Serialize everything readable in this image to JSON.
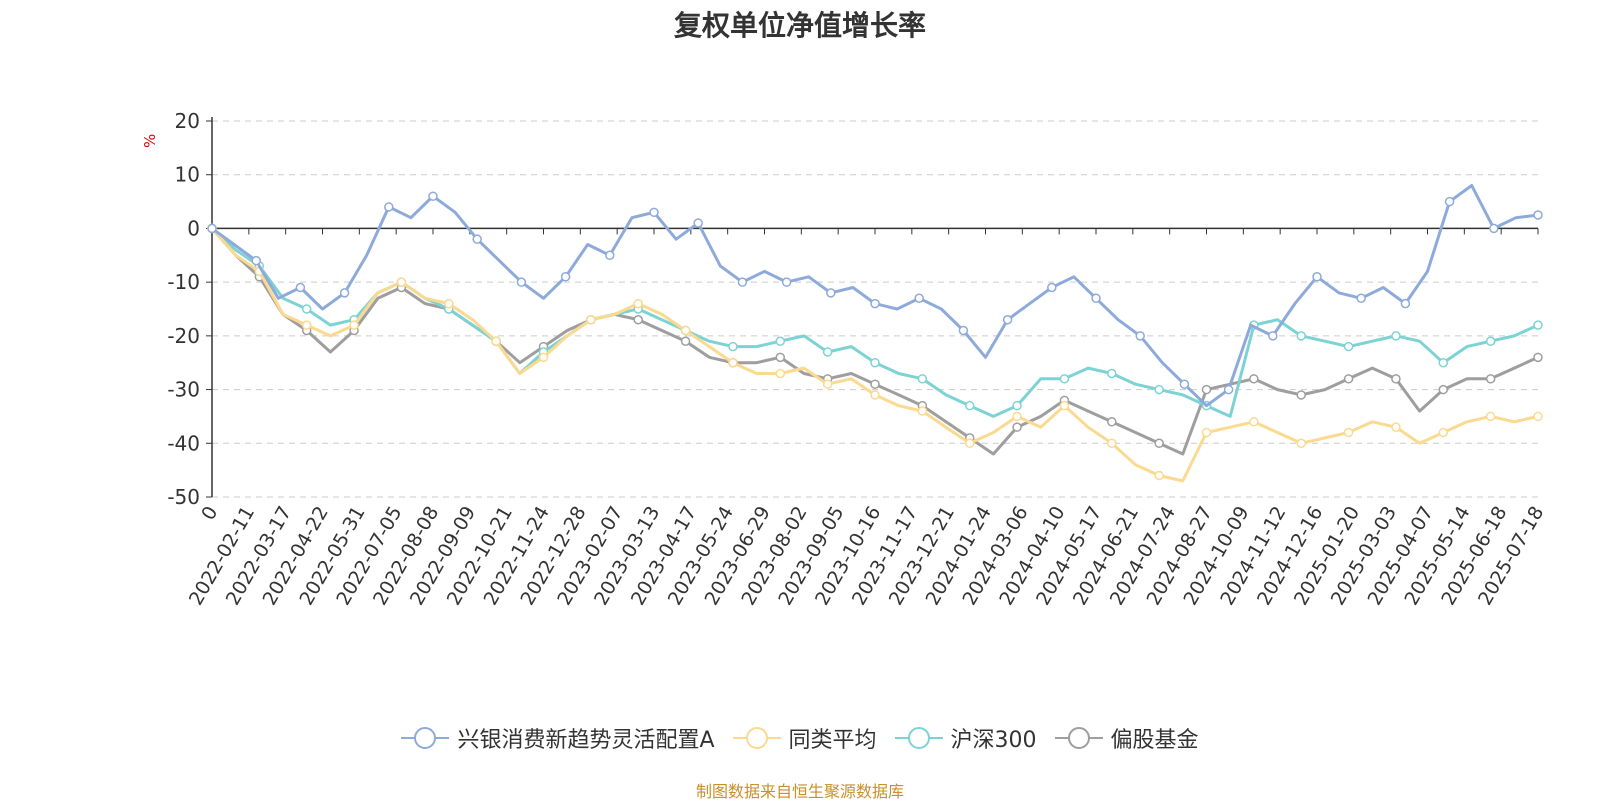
{
  "chart_data": {
    "type": "line",
    "title": "复权单位净值增长率",
    "ylabel": "%",
    "ylim": [
      -50,
      20
    ],
    "yticks": [
      "20",
      "10",
      "0",
      "-10",
      "-20",
      "-30",
      "-40",
      "-50"
    ],
    "yticks_values": [
      20,
      10,
      0,
      -10,
      -20,
      -30,
      -40,
      -50
    ],
    "x_ticks": [
      "0",
      "2022-02-11",
      "2022-03-17",
      "2022-04-22",
      "2022-05-31",
      "2022-07-05",
      "2022-08-08",
      "2022-09-09",
      "2022-10-21",
      "2022-11-24",
      "2022-12-28",
      "2023-02-07",
      "2023-03-13",
      "2023-04-17",
      "2023-05-24",
      "2023-06-29",
      "2023-08-02",
      "2023-09-05",
      "2023-10-16",
      "2023-11-17",
      "2023-12-21",
      "2024-01-24",
      "2024-03-06",
      "2024-04-10",
      "2024-05-17",
      "2024-06-21",
      "2024-07-24",
      "2024-08-27",
      "2024-10-09",
      "2024-11-12",
      "2024-12-16",
      "2025-01-20",
      "2025-03-03",
      "2025-04-07",
      "2025-05-14",
      "2025-06-18",
      "2025-07-18"
    ],
    "grid": true,
    "legend_position": "bottom",
    "series": [
      {
        "name": "兴银消费新趋势灵活配置A",
        "color": "#8eaadb",
        "values": [
          0,
          -3,
          -6,
          -13,
          -11,
          -15,
          -12,
          -5,
          4,
          2,
          6,
          3,
          -2,
          -6,
          -10,
          -13,
          -9,
          -3,
          -5,
          2,
          3,
          -2,
          1,
          -7,
          -10,
          -8,
          -10,
          -9,
          -12,
          -11,
          -14,
          -15,
          -13,
          -15,
          -19,
          -24,
          -17,
          -14,
          -11,
          -9,
          -13,
          -17,
          -20,
          -25,
          -29,
          -33,
          -30,
          -18,
          -20,
          -14,
          -9,
          -12,
          -13,
          -11,
          -14,
          -8,
          5,
          8,
          0,
          2,
          2.5
        ]
      },
      {
        "name": "同类平均",
        "color": "#fbd98f",
        "values": [
          0,
          -5,
          -8,
          -16,
          -18,
          -20,
          -18,
          -12,
          -10,
          -13,
          -14,
          -17,
          -21,
          -27,
          -24,
          -20,
          -17,
          -16,
          -14,
          -16,
          -19,
          -22,
          -25,
          -27,
          -27,
          -26,
          -29,
          -28,
          -31,
          -33,
          -34,
          -37,
          -40,
          -38,
          -35,
          -37,
          -33,
          -37,
          -40,
          -44,
          -46,
          -47,
          -38,
          -37,
          -36,
          -38,
          -40,
          -39,
          -38,
          -36,
          -37,
          -40,
          -38,
          -36,
          -35,
          -36,
          -35
        ]
      },
      {
        "name": "沪深300",
        "color": "#7dd3d3",
        "values": [
          0,
          -4,
          -7,
          -13,
          -15,
          -18,
          -17,
          -12,
          -10,
          -13,
          -15,
          -18,
          -21,
          -27,
          -23,
          -20,
          -17,
          -16,
          -15,
          -17,
          -19,
          -21,
          -22,
          -22,
          -21,
          -20,
          -23,
          -22,
          -25,
          -27,
          -28,
          -31,
          -33,
          -35,
          -33,
          -28,
          -28,
          -26,
          -27,
          -29,
          -30,
          -31,
          -33,
          -35,
          -18,
          -17,
          -20,
          -21,
          -22,
          -21,
          -20,
          -21,
          -25,
          -22,
          -21,
          -20,
          -18
        ]
      },
      {
        "name": "偏股基金",
        "color": "#9e9e9e",
        "values": [
          0,
          -5,
          -9,
          -16,
          -19,
          -23,
          -19,
          -13,
          -11,
          -14,
          -15,
          -18,
          -21,
          -25,
          -22,
          -19,
          -17,
          -16,
          -17,
          -19,
          -21,
          -24,
          -25,
          -25,
          -24,
          -27,
          -28,
          -27,
          -29,
          -31,
          -33,
          -36,
          -39,
          -42,
          -37,
          -35,
          -32,
          -34,
          -36,
          -38,
          -40,
          -42,
          -30,
          -29,
          -28,
          -30,
          -31,
          -30,
          -28,
          -26,
          -28,
          -34,
          -30,
          -28,
          -28,
          -26,
          -24
        ]
      }
    ]
  },
  "legend": {
    "items": [
      {
        "label": "兴银消费新趋势灵活配置A",
        "color": "#8eaadb"
      },
      {
        "label": "同类平均",
        "color": "#fbd98f"
      },
      {
        "label": "沪深300",
        "color": "#7dd3d3"
      },
      {
        "label": "偏股基金",
        "color": "#9e9e9e"
      }
    ]
  },
  "source": "制图数据来自恒生聚源数据库"
}
